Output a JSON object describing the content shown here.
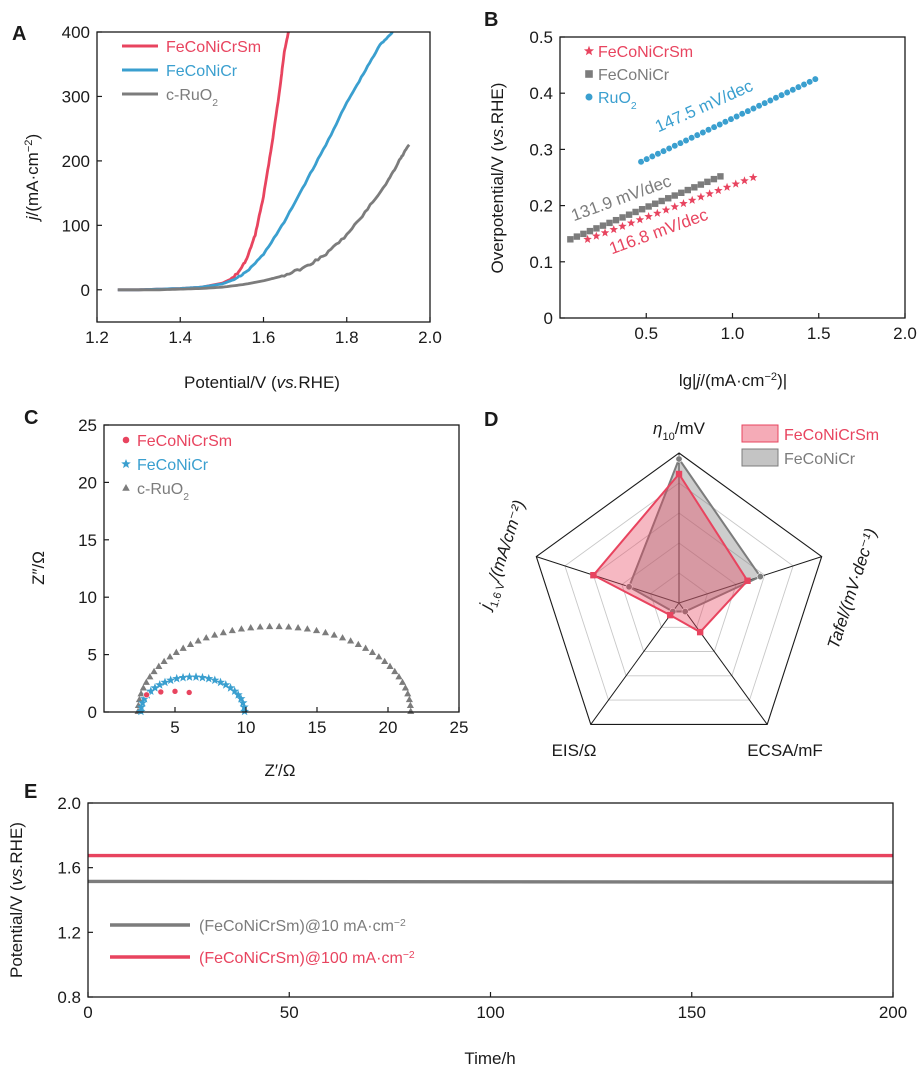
{
  "colors": {
    "red": "#e8445f",
    "blue": "#3a9fcf",
    "gray": "#7c7c7c",
    "axis": "#1a1a1a",
    "grid": "#c8c8c8"
  },
  "panels": {
    "A": {
      "letter": "A",
      "chart_data": {
        "type": "line",
        "xlabel_pre": "Potential/V (",
        "xlabel_it": "vs.",
        "xlabel_post": "RHE)",
        "ylabel_it": "j",
        "ylabel_rest": "/(mA·cm",
        "ylabel_sup": "−2",
        "ylabel_close": ")",
        "xlim": [
          1.2,
          2.0
        ],
        "ylim": [
          -50,
          400
        ],
        "xticks": [
          1.2,
          1.4,
          1.6,
          1.8,
          2.0
        ],
        "xtick_labels": [
          "1.2",
          "1.4",
          "1.6",
          "1.8",
          "2.0"
        ],
        "yticks": [
          0,
          100,
          200,
          300,
          400
        ],
        "ytick_labels": [
          "0",
          "100",
          "200",
          "300",
          "400"
        ],
        "legend": [
          {
            "main": "FeCoNiCrSm",
            "sub": "",
            "color": "#e8445f"
          },
          {
            "main": "FeCoNiCr",
            "sub": "",
            "color": "#3a9fcf"
          },
          {
            "main": "c-RuO",
            "sub": "2",
            "color": "#7c7c7c"
          }
        ],
        "series": [
          {
            "name": "FeCoNiCrSm",
            "color": "#e8445f",
            "x": [
              1.25,
              1.3,
              1.35,
              1.4,
              1.45,
              1.5,
              1.52,
              1.54,
              1.56,
              1.58,
              1.6,
              1.62,
              1.64,
              1.65,
              1.66
            ],
            "y": [
              0,
              0,
              1,
              2,
              4,
              10,
              16,
              27,
              48,
              85,
              145,
              225,
              315,
              370,
              400
            ]
          },
          {
            "name": "FeCoNiCr",
            "color": "#3a9fcf",
            "x": [
              1.25,
              1.3,
              1.35,
              1.4,
              1.45,
              1.5,
              1.53,
              1.56,
              1.6,
              1.65,
              1.7,
              1.75,
              1.8,
              1.84,
              1.88,
              1.91
            ],
            "y": [
              0,
              0,
              1,
              2,
              4,
              9,
              16,
              28,
              55,
              105,
              165,
              225,
              290,
              335,
              380,
              400
            ]
          },
          {
            "name": "c-RuO2",
            "color": "#7c7c7c",
            "x": [
              1.25,
              1.3,
              1.35,
              1.4,
              1.45,
              1.5,
              1.55,
              1.6,
              1.65,
              1.7,
              1.75,
              1.8,
              1.85,
              1.9,
              1.93,
              1.95
            ],
            "y": [
              0,
              0,
              0,
              1,
              2,
              4,
              8,
              14,
              22,
              35,
              55,
              85,
              125,
              170,
              205,
              225
            ]
          }
        ]
      }
    },
    "B": {
      "letter": "B",
      "chart_data": {
        "type": "scatter",
        "xlabel_pre": "lg|",
        "xlabel_it": "j",
        "xlabel_post": "/(mA·cm",
        "xlabel_sup": "−2",
        "xlabel_close": ")|",
        "ylabel_pre": "Overpotential/V (",
        "ylabel_it": "vs.",
        "ylabel_post": "RHE)",
        "xlim": [
          0,
          2.0
        ],
        "ylim": [
          0,
          0.5
        ],
        "xticks": [
          0.5,
          1.0,
          1.5,
          2.0
        ],
        "xtick_labels": [
          "0.5",
          "1.0",
          "1.5",
          "2.0"
        ],
        "yticks": [
          0,
          0.1,
          0.2,
          0.3,
          0.4,
          0.5
        ],
        "ytick_labels": [
          "0",
          "0.1",
          "0.2",
          "0.3",
          "0.4",
          "0.5"
        ],
        "legend": [
          {
            "main": "FeCoNiCrSm",
            "sub": "",
            "color": "#e8445f",
            "marker": "star"
          },
          {
            "main": "FeCoNiCr",
            "sub": "",
            "color": "#7c7c7c",
            "marker": "square"
          },
          {
            "main": "RuO",
            "sub": "2",
            "color": "#3a9fcf",
            "marker": "circle"
          }
        ],
        "series": [
          {
            "name": "RuO2",
            "color": "#3a9fcf",
            "marker": "circle",
            "x_start": 0.47,
            "x_end": 1.48,
            "y_start": 0.278,
            "y_end": 0.425,
            "count": 32,
            "slope_label": "147.5 mV/dec",
            "label_x": 0.57,
            "label_y": 0.33,
            "label_angle": -24
          },
          {
            "name": "FeCoNiCr",
            "color": "#7c7c7c",
            "marker": "square",
            "x_start": 0.06,
            "x_end": 0.93,
            "y_start": 0.14,
            "y_end": 0.252,
            "count": 24,
            "slope_label": "131.9 mV/dec",
            "label_x": 0.08,
            "label_y": 0.172,
            "label_angle": -20
          },
          {
            "name": "FeCoNiCrSm",
            "color": "#e8445f",
            "marker": "star",
            "x_start": 0.16,
            "x_end": 1.12,
            "y_start": 0.14,
            "y_end": 0.25,
            "count": 20,
            "slope_label": "116.8 mV/dec",
            "label_x": 0.3,
            "label_y": 0.113,
            "label_angle": -20
          }
        ]
      }
    },
    "C": {
      "letter": "C",
      "chart_data": {
        "type": "scatter",
        "xlabel": "Z′/Ω",
        "ylabel": "Z″/Ω",
        "xlim": [
          0,
          25
        ],
        "ylim": [
          0,
          25
        ],
        "xticks": [
          5,
          10,
          15,
          20,
          25
        ],
        "xtick_labels": [
          "5",
          "10",
          "15",
          "20",
          "25"
        ],
        "yticks": [
          0,
          5,
          10,
          15,
          20,
          25
        ],
        "ytick_labels": [
          "0",
          "5",
          "10",
          "15",
          "20",
          "25"
        ],
        "legend": [
          {
            "main": "FeCoNiCrSm",
            "sub": "",
            "color": "#e8445f",
            "marker": "circle"
          },
          {
            "main": "FeCoNiCr",
            "sub": "",
            "color": "#3a9fcf",
            "marker": "star"
          },
          {
            "main": "c-RuO",
            "sub": "2",
            "color": "#7c7c7c",
            "marker": "triangle"
          }
        ],
        "series": [
          {
            "name": "c-RuO2",
            "color": "#7c7c7c",
            "marker": "triangle",
            "x_start": 2.4,
            "x_end": 21.6,
            "peak": 7.4,
            "count": 46
          },
          {
            "name": "FeCoNiCr",
            "color": "#3a9fcf",
            "marker": "star",
            "x_start": 2.6,
            "x_end": 9.9,
            "peak": 3.0,
            "count": 26
          },
          {
            "name": "FeCoNiCrSm",
            "color": "#e8445f",
            "marker": "circle",
            "x": [
              3.0,
              4.0,
              5.0,
              6.0
            ],
            "y": [
              1.5,
              1.75,
              1.8,
              1.7
            ]
          }
        ]
      }
    },
    "D": {
      "letter": "D",
      "chart_data": {
        "type": "radar",
        "axes": [
          {
            "main": "η",
            "sub": "10",
            "post": "/mV",
            "it": true
          },
          {
            "main": "Tafel/(mV",
            "sub": "",
            "post": "·dec⁻¹)",
            "it": true
          },
          {
            "main": "ECSA/mF",
            "sub": "",
            "post": "",
            "it": false
          },
          {
            "main": "EIS/Ω",
            "sub": "",
            "post": "",
            "it": false
          },
          {
            "main": "j",
            "sub": "1.6 V",
            "post": "/(mA/cm⁻²)",
            "it": true
          }
        ],
        "rings": 5,
        "legend": [
          {
            "main": "FeCoNiCrSm",
            "color": "#e8445f"
          },
          {
            "main": "FeCoNiCr",
            "color": "#7c7c7c"
          }
        ],
        "series": [
          {
            "name": "FeCoNiCrSm",
            "color": "#e8445f",
            "values": [
              0.86,
              0.48,
              0.24,
              0.1,
              0.6
            ]
          },
          {
            "name": "FeCoNiCr",
            "color": "#7c7c7c",
            "values": [
              0.96,
              0.57,
              0.07,
              0.07,
              0.35
            ]
          }
        ]
      }
    },
    "E": {
      "letter": "E",
      "chart_data": {
        "type": "line",
        "xlabel": "Time/h",
        "ylabel_pre": "Potential/V (",
        "ylabel_it": "vs.",
        "ylabel_post": "RHE)",
        "xlim": [
          0,
          200
        ],
        "ylim": [
          0.8,
          2.0
        ],
        "xticks": [
          0,
          50,
          100,
          150,
          200
        ],
        "xtick_labels": [
          "0",
          "50",
          "100",
          "150",
          "200"
        ],
        "yticks": [
          0.8,
          1.2,
          1.6,
          2.0
        ],
        "ytick_labels": [
          "0.8",
          "1.2",
          "1.6",
          "2.0"
        ],
        "legend": [
          {
            "main": "(FeCoNiCrSm)@10 mA·cm",
            "sup": "−2",
            "color": "#7c7c7c"
          },
          {
            "main": "(FeCoNiCrSm)@100 mA·cm",
            "sup": "−2",
            "color": "#e8445f"
          }
        ],
        "series": [
          {
            "name": "(FeCoNiCrSm)@100 mA·cm−2",
            "color": "#e8445f",
            "x": [
              0,
              200
            ],
            "y": [
              1.675,
              1.675
            ]
          },
          {
            "name": "(FeCoNiCrSm)@10 mA·cm−2",
            "color": "#7c7c7c",
            "x": [
              0,
              200
            ],
            "y": [
              1.515,
              1.51
            ]
          }
        ]
      }
    }
  }
}
